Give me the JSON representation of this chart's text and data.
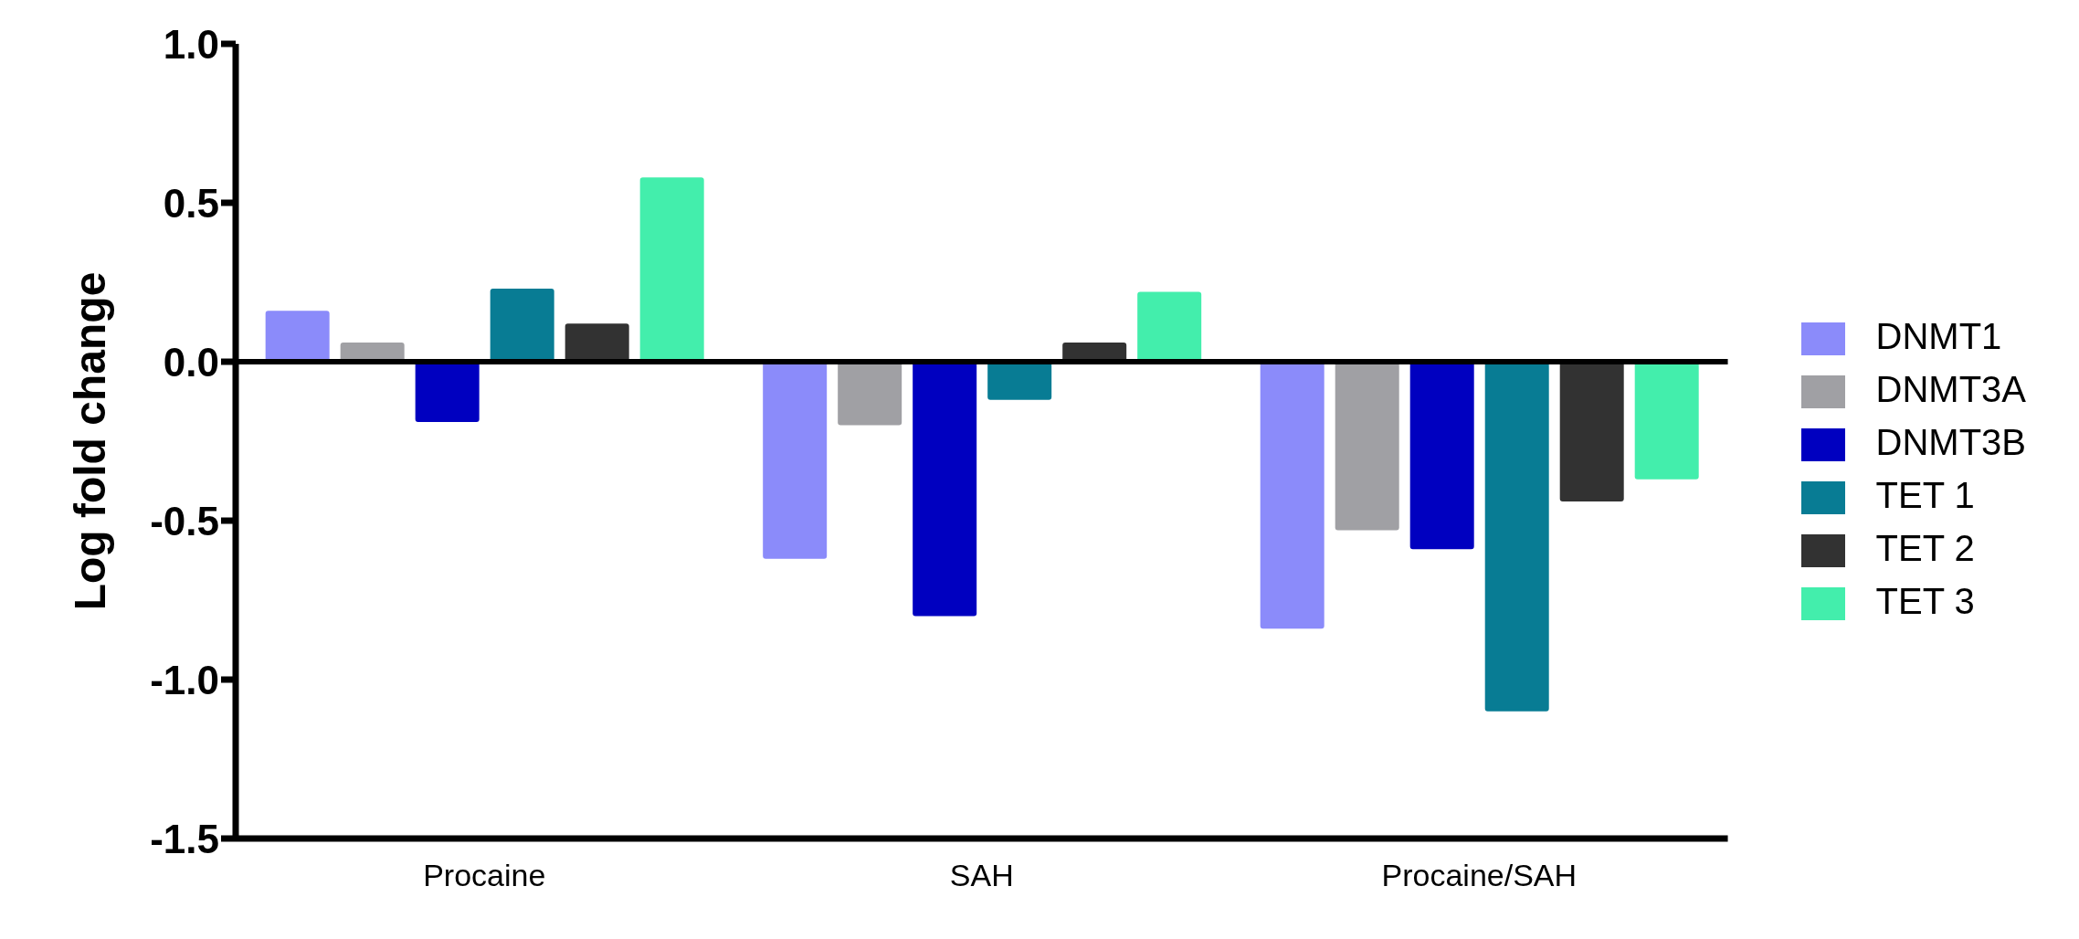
{
  "chart_data": {
    "type": "bar",
    "ylabel": "Log fold change",
    "categories": [
      "Procaine",
      "SAH",
      "Procaine/SAH"
    ],
    "series": [
      {
        "name": "DNMT1",
        "color": "#8b8bfa",
        "values": [
          0.16,
          -0.62,
          -0.84
        ]
      },
      {
        "name": "DNMT3A",
        "color": "#a0a0a4",
        "values": [
          0.06,
          -0.2,
          -0.53
        ]
      },
      {
        "name": "DNMT3B",
        "color": "#0000c0",
        "values": [
          -0.19,
          -0.8,
          -0.59
        ]
      },
      {
        "name": "TET 1",
        "color": "#087c94",
        "values": [
          0.23,
          -0.12,
          -1.1
        ]
      },
      {
        "name": "TET 2",
        "color": "#323232",
        "values": [
          0.12,
          0.06,
          -0.44
        ]
      },
      {
        "name": "TET 3",
        "color": "#43eeac",
        "values": [
          0.58,
          0.22,
          -0.37
        ]
      }
    ],
    "ylim": [
      -1.5,
      1.0
    ],
    "yticks": [
      {
        "value": -1.5,
        "label": "-1.5"
      },
      {
        "value": -1.0,
        "label": "-1.0"
      },
      {
        "value": -0.5,
        "label": "-0.5"
      },
      {
        "value": 0,
        "label": "0.0"
      },
      {
        "value": 0.5,
        "label": "0.5"
      },
      {
        "value": 1.0,
        "label": "1.0"
      }
    ],
    "ref_lines": [
      {
        "axis": "y",
        "value": 0,
        "color": "#000000"
      }
    ],
    "grid": false,
    "legend": "right"
  }
}
